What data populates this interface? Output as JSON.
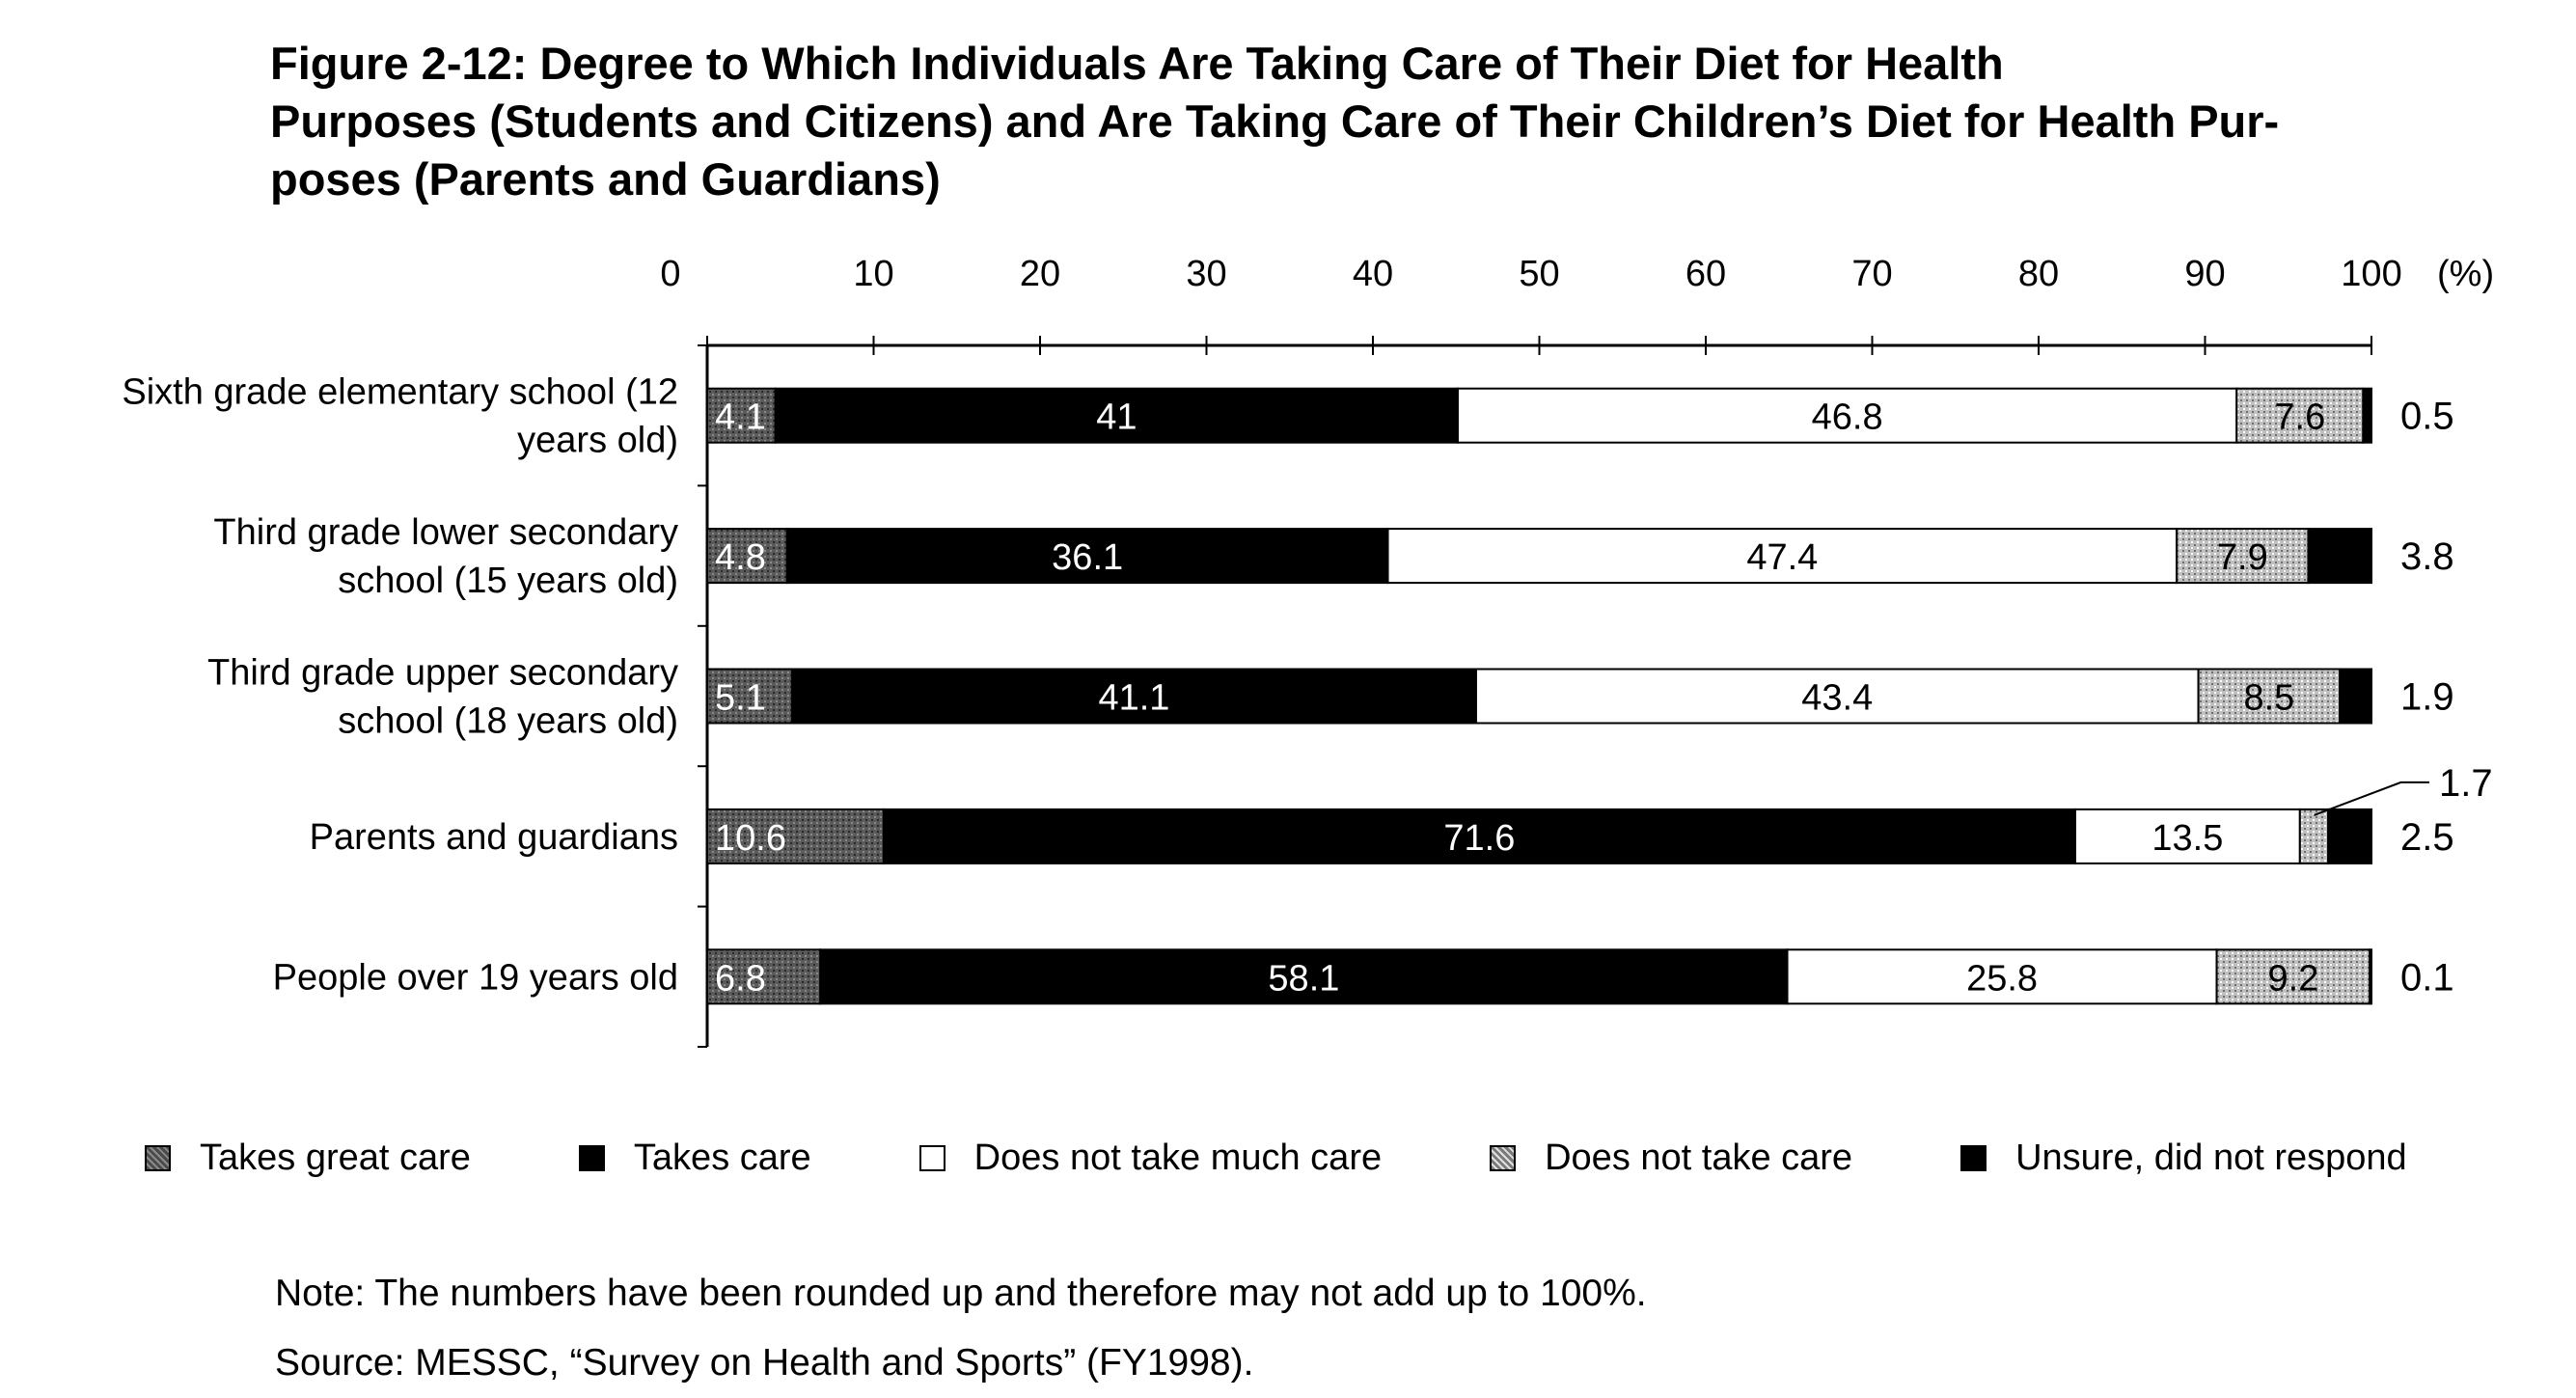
{
  "title_lines": [
    "Figure 2-12: Degree to Which Individuals Are Taking Care of Their Diet for Health",
    "Purposes (Students and Citizens) and Are Taking Care of Their Children’s Diet for Health Pur-",
    "poses (Parents and Guardians)"
  ],
  "notes": {
    "note": "Note: The numbers have been rounded up and therefore may not add up to 100%.",
    "source": "Source: MESSC, “Survey on Health and Sports” (FY1998)."
  },
  "chart_data": {
    "type": "bar",
    "orientation": "horizontal",
    "stacked": true,
    "title": "Figure 2-12: Degree to Which Individuals Are Taking Care of Their Diet for Health Purposes (Students and Citizens) and Are Taking Care of Their Children’s Diet for Health Purposes (Parents and Guardians)",
    "xlim": [
      0,
      100
    ],
    "x_unit_label": "(%)",
    "x_ticks": [
      "0",
      "10",
      "20",
      "30",
      "40",
      "50",
      "60",
      "70",
      "80",
      "90",
      "100"
    ],
    "legend_position": "bottom",
    "grid": false,
    "categories": [
      "Sixth grade elementary school (12 years old)",
      "Third grade lower secondary school (15 years old)",
      "Third grade upper secondary school (18 years old)",
      "Parents and guardians",
      "People over 19 years old"
    ],
    "category_label_lines": [
      [
        "Sixth grade elementary school (12",
        "years old)"
      ],
      [
        "Third grade lower secondary",
        "school (15 years old)"
      ],
      [
        "Third grade upper secondary",
        "school (18 years old)"
      ],
      [
        "Parents and guardians"
      ],
      [
        "People over 19 years old"
      ]
    ],
    "series": [
      {
        "name": "Takes great care",
        "color": "#5a5a5a",
        "pattern": "dark-stipple",
        "values": [
          4.1,
          4.8,
          5.1,
          10.6,
          6.8
        ],
        "labels": [
          "4.1",
          "4.8",
          "5.1",
          "10.6",
          "6.8"
        ]
      },
      {
        "name": "Takes care",
        "color": "#000000",
        "pattern": "solid",
        "values": [
          41,
          36.1,
          41.1,
          71.6,
          58.1
        ],
        "labels": [
          "41",
          "36.1",
          "41.1",
          "71.6",
          "58.1"
        ]
      },
      {
        "name": "Does not take much care",
        "color": "#ffffff",
        "pattern": "solid",
        "values": [
          46.8,
          47.4,
          43.4,
          13.5,
          25.8
        ],
        "labels": [
          "46.8",
          "47.4",
          "43.4",
          "13.5",
          "25.8"
        ]
      },
      {
        "name": "Does not take care",
        "color": "#b3b3b3",
        "pattern": "light-stipple",
        "values": [
          7.6,
          7.9,
          8.5,
          1.7,
          9.2
        ],
        "labels": [
          "7.6",
          "7.9",
          "8.5",
          "1.7",
          "9.2"
        ]
      },
      {
        "name": "Unsure, did not respond",
        "color": "#000000",
        "pattern": "solid",
        "values": [
          0.5,
          3.8,
          1.9,
          2.5,
          0.1
        ],
        "labels": [
          "0.5",
          "3.8",
          "1.9",
          "2.5",
          "0.1"
        ]
      }
    ]
  }
}
